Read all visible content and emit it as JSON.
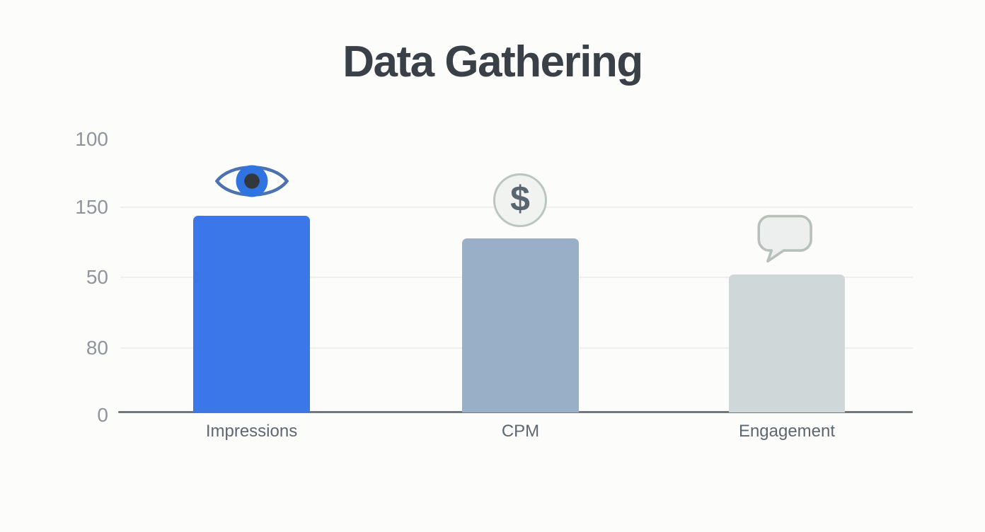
{
  "title": "Data Gathering",
  "chart_data": {
    "type": "bar",
    "title": "Data Gathering",
    "categories": [
      "Impressions",
      "CPM",
      "Engagement"
    ],
    "values": [
      144,
      127,
      101
    ],
    "bar_colors": [
      "#3b77e8",
      "#99aec7",
      "#cfd7d9"
    ],
    "y_axis_tick_labels_top_to_bottom": [
      "100",
      "150",
      "50",
      "80",
      "0"
    ],
    "baseline_value": 0,
    "scale_units_per_290px": 150,
    "grid": true,
    "legend": false,
    "icons_above_bars": [
      "eye-icon",
      "dollar-coin-icon",
      "speech-bubble-icon"
    ]
  },
  "axis": {
    "ticks": [
      "100",
      "150",
      "50",
      "80",
      "0"
    ]
  },
  "icons": {
    "dollar_symbol": "$"
  },
  "colors": {
    "background": "#fcfcfa",
    "title_text": "#3a4047",
    "tick_text": "#8f959c",
    "category_text": "#5d6771",
    "gridline": "#efefec",
    "axis_line": "#70777d",
    "bar_impressions": "#3b77e8",
    "bar_cpm": "#99aec7",
    "bar_engagement": "#cfd7d9",
    "eye_outline": "#4d72b0",
    "eye_iris": "#2f74e0",
    "eye_pupil": "#33383f",
    "coin_fill": "#f1f3f0",
    "coin_border": "#bac7be",
    "coin_symbol": "#5a666f",
    "bubble_fill": "#ecefed",
    "bubble_border": "#b7c0ba"
  }
}
